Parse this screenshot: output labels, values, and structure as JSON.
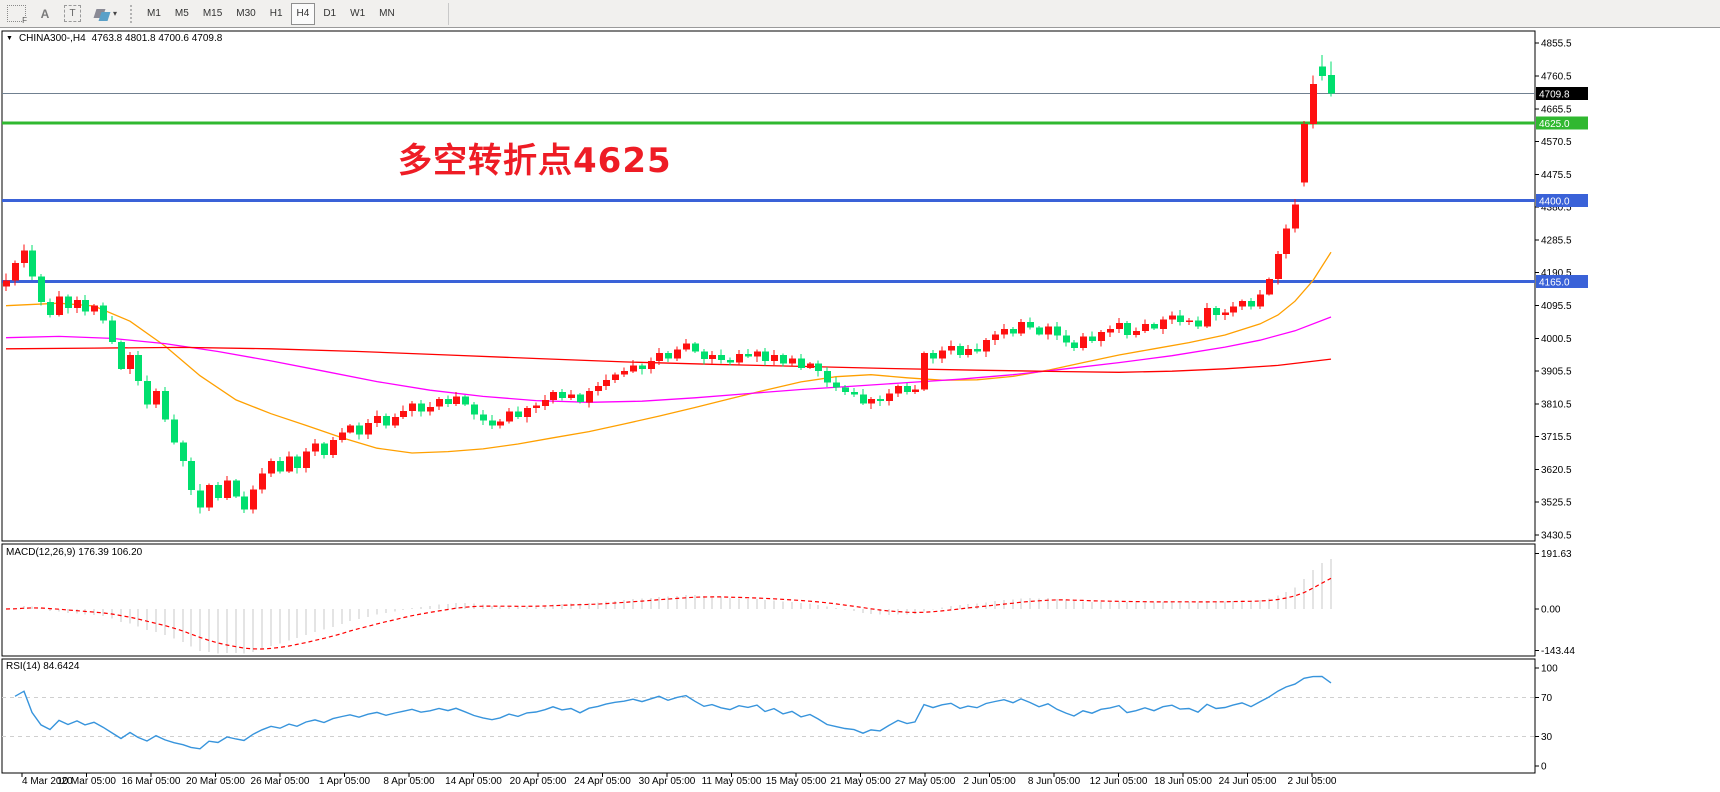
{
  "toolbar": {
    "icons": [
      {
        "name": "chart-template-f-icon",
        "label": "F"
      },
      {
        "name": "text-label-icon",
        "label": "A"
      },
      {
        "name": "text-box-icon",
        "label": "T"
      },
      {
        "name": "shapes-icon",
        "label": ""
      }
    ],
    "timeframes": [
      "M1",
      "M5",
      "M15",
      "M30",
      "H1",
      "H4",
      "D1",
      "W1",
      "MN"
    ],
    "selected_timeframe": "H4"
  },
  "chart": {
    "title_symbol": "CHINA300-,H4",
    "title_ohlc": "4763.8 4801.8 4700.6 4709.8",
    "annotation": {
      "text": "多空转折点4625",
      "color": "#ee1c25"
    }
  },
  "indicators": {
    "macd": {
      "text": "MACD(12,26,9) 176.39 106.20",
      "params": [
        12,
        26,
        9
      ],
      "axis_ticks": [
        "191.63",
        "0.00",
        "-143.44"
      ]
    },
    "rsi": {
      "text": "RSI(14) 84.6424",
      "period": 14,
      "axis_ticks": [
        "100",
        "70",
        "30",
        "0"
      ],
      "levels": [
        70,
        30
      ]
    }
  },
  "chart_data": {
    "type": "candlestick",
    "symbol": "CHINA300-",
    "timeframe": "H4",
    "current_bar": {
      "open": 4763.8,
      "high": 4801.8,
      "low": 4700.6,
      "close": 4709.8
    },
    "price_axis": {
      "ticks": [
        4855.5,
        4760.5,
        4665.5,
        4570.5,
        4475.5,
        4380.5,
        4285.5,
        4190.5,
        4095.5,
        4000.5,
        3905.5,
        3810.5,
        3715.5,
        3620.5,
        3525.5,
        3430.5
      ],
      "top_price": 4888,
      "bottom_price": 3413
    },
    "levels": [
      {
        "value": 4709.8,
        "label": "4709.8",
        "kind": "current-price",
        "line_color": "#708090",
        "badge_color": "#000000",
        "width": 1
      },
      {
        "value": 4625.0,
        "label": "4625.0",
        "kind": "horizontal-line",
        "line_color": "#30b830",
        "badge_color": "#30b830",
        "width": 3
      },
      {
        "value": 4400.0,
        "label": "4400.0",
        "kind": "horizontal-line",
        "line_color": "#3a62d8",
        "badge_color": "#3a62d8",
        "width": 3
      },
      {
        "value": 4165.0,
        "label": "4165.0",
        "kind": "horizontal-line",
        "line_color": "#3a62d8",
        "badge_color": "#3a62d8",
        "width": 3
      }
    ],
    "colors": {
      "up": "#fe1010",
      "down": "#00df6e",
      "ma_fast": "#ffa000",
      "ma_mid": "#ff00ff",
      "ma_slow": "#ff0000",
      "macd_hist": "#c9c9c9",
      "macd_signal": "#ff0000",
      "rsi_line": "#3794dc",
      "rsi_levels": "#cfcfcf"
    },
    "time_labels": [
      "4 Mar 2020",
      "10 Mar 05:00",
      "16 Mar 05:00",
      "20 Mar 05:00",
      "26 Mar 05:00",
      "1 Apr 05:00",
      "8 Apr 05:00",
      "14 Apr 05:00",
      "20 Apr 05:00",
      "24 Apr 05:00",
      "30 Apr 05:00",
      "11 May 05:00",
      "15 May 05:00",
      "21 May 05:00",
      "27 May 05:00",
      "2 Jun 05:00",
      "8 Jun 05:00",
      "12 Jun 05:00",
      "18 Jun 05:00",
      "24 Jun 05:00",
      "2 Jul 05:00"
    ],
    "candles": [
      [
        4150,
        4188,
        4138,
        4168
      ],
      4218,
      [
        4218,
        4272,
        4205,
        4255
      ],
      4180,
      4105,
      4068,
      4122,
      4088,
      4112,
      4078,
      4095,
      4052,
      3990,
      3912,
      3952,
      3876,
      3808,
      3848,
      3765,
      3698,
      3645,
      3560,
      [
        3560,
        3578,
        3492,
        3510
      ],
      3575,
      3538,
      3588,
      3542,
      [
        3542,
        3556,
        3494,
        3505
      ],
      3562,
      3608,
      3645,
      3615,
      3658,
      3625,
      3672,
      3695,
      3662,
      3705,
      3728,
      3748,
      3722,
      3755,
      3775,
      3748,
      3772,
      3790,
      3812,
      3788,
      3802,
      3825,
      3810,
      3832,
      3808,
      3780,
      3762,
      3748,
      3760,
      3788,
      3772,
      3798,
      3805,
      3822,
      3845,
      3828,
      3838,
      3815,
      3848,
      3862,
      3880,
      3895,
      3905,
      3922,
      3912,
      3935,
      3958,
      3942,
      3968,
      3985,
      3962,
      3940,
      3952,
      3938,
      3930,
      3955,
      3948,
      3962,
      3935,
      3952,
      3928,
      3942,
      3915,
      3928,
      3905,
      3872,
      3858,
      3845,
      3838,
      3812,
      3825,
      3818,
      3840,
      3862,
      3845,
      3852,
      3958,
      3942,
      3965,
      3978,
      3952,
      3970,
      3962,
      3995,
      4012,
      4028,
      4015,
      4048,
      4032,
      4012,
      4035,
      4008,
      3988,
      3972,
      4005,
      3992,
      4018,
      4028,
      4045,
      4010,
      4022,
      4042,
      4028,
      4055,
      4066,
      4048,
      4052,
      4035,
      4088,
      4068,
      4075,
      4092,
      4108,
      4092,
      4128,
      4172,
      4245,
      4318,
      4388,
      [
        4452,
        4630,
        4440,
        4622
      ],
      [
        4622,
        4762,
        4608,
        4738
      ],
      [
        4788,
        4822,
        4748,
        4760
      ],
      [
        4763.8,
        4801.8,
        4700.6,
        4709.8
      ]
    ],
    "ma_lines": [
      {
        "name": "ma-fast-orange",
        "color": "#ffa000",
        "points": [
          [
            0,
            4095
          ],
          [
            6,
            4102
          ],
          [
            10,
            4094
          ],
          [
            14,
            4050
          ],
          [
            18,
            3978
          ],
          [
            22,
            3892
          ],
          [
            26,
            3822
          ],
          [
            30,
            3782
          ],
          [
            34,
            3748
          ],
          [
            38,
            3712
          ],
          [
            42,
            3682
          ],
          [
            46,
            3668
          ],
          [
            50,
            3672
          ],
          [
            54,
            3680
          ],
          [
            58,
            3694
          ],
          [
            62,
            3712
          ],
          [
            66,
            3730
          ],
          [
            70,
            3752
          ],
          [
            74,
            3775
          ],
          [
            78,
            3800
          ],
          [
            82,
            3825
          ],
          [
            86,
            3850
          ],
          [
            90,
            3874
          ],
          [
            94,
            3889
          ],
          [
            98,
            3895
          ],
          [
            102,
            3886
          ],
          [
            106,
            3879
          ],
          [
            110,
            3880
          ],
          [
            114,
            3890
          ],
          [
            118,
            3908
          ],
          [
            122,
            3930
          ],
          [
            126,
            3952
          ],
          [
            130,
            3970
          ],
          [
            134,
            3988
          ],
          [
            138,
            4010
          ],
          [
            142,
            4042
          ],
          [
            144,
            4068
          ],
          [
            146,
            4108
          ],
          [
            148,
            4168
          ],
          [
            150,
            4250
          ]
        ]
      },
      {
        "name": "ma-mid-magenta",
        "color": "#ff00ff",
        "points": [
          [
            0,
            4002
          ],
          [
            6,
            4006
          ],
          [
            12,
            4000
          ],
          [
            18,
            3985
          ],
          [
            24,
            3962
          ],
          [
            30,
            3935
          ],
          [
            36,
            3905
          ],
          [
            42,
            3875
          ],
          [
            48,
            3850
          ],
          [
            54,
            3832
          ],
          [
            60,
            3820
          ],
          [
            66,
            3815
          ],
          [
            72,
            3818
          ],
          [
            78,
            3828
          ],
          [
            84,
            3840
          ],
          [
            90,
            3852
          ],
          [
            96,
            3862
          ],
          [
            102,
            3872
          ],
          [
            108,
            3882
          ],
          [
            114,
            3895
          ],
          [
            120,
            3912
          ],
          [
            126,
            3930
          ],
          [
            132,
            3950
          ],
          [
            138,
            3975
          ],
          [
            142,
            3995
          ],
          [
            146,
            4022
          ],
          [
            150,
            4062
          ]
        ]
      },
      {
        "name": "ma-slow-red",
        "color": "#ff0000",
        "points": [
          [
            0,
            3970
          ],
          [
            10,
            3972
          ],
          [
            20,
            3974
          ],
          [
            30,
            3970
          ],
          [
            40,
            3962
          ],
          [
            50,
            3952
          ],
          [
            60,
            3942
          ],
          [
            70,
            3932
          ],
          [
            80,
            3925
          ],
          [
            90,
            3919
          ],
          [
            100,
            3913
          ],
          [
            110,
            3908
          ],
          [
            120,
            3904
          ],
          [
            126,
            3902
          ],
          [
            132,
            3905
          ],
          [
            138,
            3912
          ],
          [
            144,
            3922
          ],
          [
            150,
            3940
          ]
        ]
      }
    ],
    "macd_axis": {
      "top_value": 191.63,
      "zero_value": 0.0,
      "bottom_value": -143.44
    },
    "rsi_axis": {
      "max": 100,
      "min": 0
    }
  }
}
